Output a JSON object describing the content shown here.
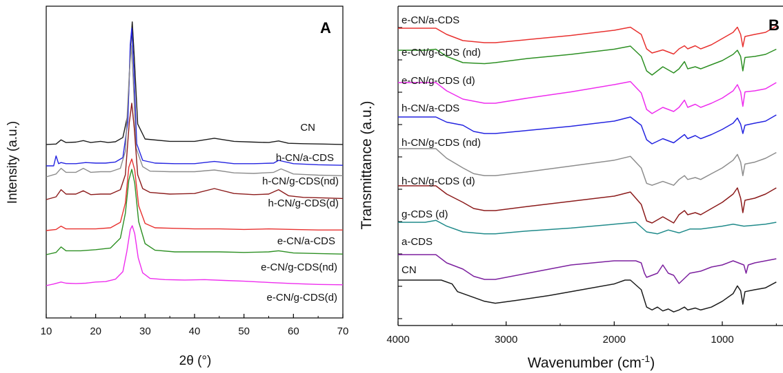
{
  "chart_data": [
    {
      "type": "line",
      "panel": "A",
      "xlabel": "2θ (°)",
      "ylabel": "Intensity (a.u.)",
      "xlim": [
        10,
        70
      ],
      "xticks": [
        10,
        20,
        30,
        40,
        50,
        60,
        70
      ],
      "grid": false,
      "series": [
        {
          "name": "CN",
          "color": "#1a1a1a",
          "x": [
            10,
            12,
            13,
            14,
            16,
            17.5,
            19,
            21,
            22.5,
            24,
            25.5,
            26.5,
            27,
            27.4,
            27.8,
            28.5,
            30,
            35,
            40,
            44,
            48,
            52,
            55,
            57,
            59,
            62,
            66,
            70
          ],
          "y": [
            0.02,
            0.03,
            0.14,
            0.07,
            0.08,
            0.12,
            0.07,
            0.1,
            0.07,
            0.09,
            0.2,
            0.8,
            2.4,
            3.2,
            2.3,
            0.55,
            0.16,
            0.1,
            0.1,
            0.18,
            0.1,
            0.08,
            0.07,
            0.11,
            0.05,
            0.04,
            0.03,
            0.02
          ]
        },
        {
          "name": "h-CN/a-CDS",
          "color": "#2323e0",
          "x": [
            10,
            11.5,
            12,
            12.5,
            13,
            14,
            16,
            18,
            20,
            22,
            24,
            25.5,
            26.5,
            27,
            27.3,
            27.7,
            28.3,
            29.5,
            32,
            36,
            40,
            44,
            48,
            52,
            56,
            57,
            60,
            65,
            70
          ],
          "y": [
            0.0,
            0.0,
            0.18,
            0.04,
            0.06,
            0.04,
            0.04,
            0.06,
            0.05,
            0.05,
            0.07,
            0.15,
            0.8,
            2.2,
            2.5,
            1.8,
            0.4,
            0.1,
            0.05,
            0.04,
            0.04,
            0.08,
            0.04,
            0.04,
            0.05,
            0.1,
            0.04,
            0.02,
            0.01
          ]
        },
        {
          "name": "h-CN/g-CDS(nd)",
          "color": "#8c8c8c",
          "x": [
            10,
            12,
            13,
            14,
            16,
            17.5,
            19,
            21,
            23,
            25,
            26,
            26.8,
            27.2,
            27.6,
            28.2,
            29.5,
            31,
            35,
            40,
            44,
            48,
            52,
            56,
            57.5,
            60,
            65,
            70
          ],
          "y": [
            0.0,
            0.05,
            0.15,
            0.08,
            0.08,
            0.15,
            0.08,
            0.09,
            0.09,
            0.15,
            0.45,
            1.8,
            2.3,
            1.7,
            0.5,
            0.18,
            0.1,
            0.09,
            0.09,
            0.12,
            0.07,
            0.06,
            0.08,
            0.14,
            0.05,
            0.03,
            0.02
          ]
        },
        {
          "name": "h-CN/g-CDS(d)",
          "color": "#8b1a1a",
          "x": [
            10,
            12,
            13,
            14,
            16,
            17.5,
            19,
            21,
            23,
            25,
            26,
            26.8,
            27.3,
            27.8,
            28.5,
            29.5,
            31,
            35,
            40,
            44,
            48,
            52,
            55,
            57,
            59,
            62,
            66,
            70
          ],
          "y": [
            0.0,
            0.05,
            0.18,
            0.1,
            0.1,
            0.16,
            0.09,
            0.1,
            0.1,
            0.18,
            0.45,
            1.4,
            1.75,
            1.3,
            0.45,
            0.2,
            0.13,
            0.1,
            0.11,
            0.2,
            0.11,
            0.09,
            0.1,
            0.18,
            0.07,
            0.04,
            0.03,
            0.02
          ]
        },
        {
          "name": "e-CN/a-CDS",
          "color": "#e8302e",
          "x": [
            10,
            12,
            13,
            14,
            17,
            20,
            23,
            25,
            26,
            26.7,
            27.3,
            27.9,
            28.7,
            30,
            32,
            36,
            40,
            45,
            50,
            55,
            60,
            65,
            70
          ],
          "y": [
            0.0,
            0.02,
            0.08,
            0.03,
            0.03,
            0.03,
            0.05,
            0.15,
            0.5,
            1.15,
            1.3,
            1.1,
            0.45,
            0.13,
            0.05,
            0.04,
            0.03,
            0.03,
            0.02,
            0.03,
            0.02,
            0.01,
            0.01
          ]
        },
        {
          "name": "e-CN/g-CDS(nd)",
          "color": "#2c8f22",
          "x": [
            10,
            12,
            13,
            14,
            17,
            20,
            23,
            25,
            26,
            26.7,
            27.3,
            27.9,
            28.7,
            30,
            32,
            36,
            40,
            45,
            50,
            55,
            57,
            60,
            65,
            70
          ],
          "y": [
            0.0,
            0.04,
            0.14,
            0.07,
            0.07,
            0.09,
            0.12,
            0.3,
            0.75,
            1.35,
            1.55,
            1.3,
            0.6,
            0.2,
            0.08,
            0.05,
            0.05,
            0.05,
            0.04,
            0.05,
            0.07,
            0.03,
            0.02,
            0.01
          ]
        },
        {
          "name": "e-CN/g-CDS(d)",
          "color": "#ee2cee",
          "x": [
            10,
            11.5,
            13,
            14,
            16,
            18,
            20,
            22,
            24,
            25.5,
            26.3,
            27,
            27.4,
            27.9,
            28.6,
            29.5,
            31,
            34,
            38,
            42,
            46,
            50,
            55,
            60,
            65,
            70
          ],
          "y": [
            0.0,
            0.04,
            0.09,
            0.06,
            0.05,
            0.06,
            0.09,
            0.1,
            0.16,
            0.35,
            0.85,
            1.4,
            1.5,
            1.3,
            0.7,
            0.32,
            0.18,
            0.15,
            0.14,
            0.15,
            0.13,
            0.11,
            0.08,
            0.05,
            0.03,
            0.02
          ]
        }
      ]
    },
    {
      "type": "line",
      "panel": "B",
      "xlabel": "Wavenumber (cm",
      "xlabel_sup": "-1",
      "xlabel_tail": ")",
      "ylabel": "Transmittance (a.u.)",
      "xlim": [
        4000,
        500
      ],
      "xticks": [
        4000,
        3000,
        2000,
        1000
      ],
      "grid": false,
      "series": [
        {
          "name": "e-CN/a-CDS",
          "color": "#e8302e",
          "x": [
            4000,
            3750,
            3650,
            3550,
            3400,
            3200,
            3100,
            2800,
            2400,
            2000,
            1850,
            1750,
            1700,
            1650,
            1550,
            1450,
            1400,
            1350,
            1320,
            1250,
            1200,
            1100,
            1000,
            900,
            860,
            830,
            810,
            790,
            700,
            600,
            500
          ],
          "y": [
            0.0,
            0.0,
            0.0,
            -0.3,
            -0.6,
            -0.7,
            -0.7,
            -0.55,
            -0.35,
            -0.1,
            0.05,
            -0.3,
            -1.0,
            -1.2,
            -1.05,
            -1.25,
            -1.0,
            -0.85,
            -1.0,
            -0.85,
            -1.0,
            -0.8,
            -0.5,
            -0.2,
            0.05,
            -0.3,
            -0.9,
            -0.4,
            -0.3,
            -0.2,
            0.1
          ]
        },
        {
          "name": "e-CN/g-CDS (nd)",
          "color": "#2c8f22",
          "x": [
            4000,
            3750,
            3650,
            3550,
            3400,
            3200,
            3100,
            2800,
            2400,
            2000,
            1850,
            1750,
            1700,
            1650,
            1550,
            1450,
            1400,
            1350,
            1320,
            1250,
            1200,
            1100,
            1000,
            900,
            860,
            830,
            810,
            790,
            700,
            600,
            500
          ],
          "y": [
            0.0,
            0.0,
            0.05,
            -0.3,
            -0.6,
            -0.65,
            -0.6,
            -0.4,
            -0.2,
            0.05,
            0.2,
            -0.3,
            -1.0,
            -1.2,
            -0.8,
            -1.1,
            -0.9,
            -0.55,
            -0.9,
            -0.8,
            -0.9,
            -0.7,
            -0.5,
            -0.2,
            0.0,
            -0.3,
            -1.0,
            -0.35,
            -0.3,
            -0.2,
            0.05
          ]
        },
        {
          "name": "e-CN/g-CDS (d)",
          "color": "#ee2cee",
          "x": [
            4000,
            3750,
            3650,
            3550,
            3400,
            3200,
            3100,
            2800,
            2400,
            2000,
            1850,
            1750,
            1700,
            1650,
            1550,
            1450,
            1400,
            1350,
            1320,
            1250,
            1200,
            1100,
            1000,
            900,
            860,
            830,
            810,
            790,
            700,
            600,
            500
          ],
          "y": [
            0.0,
            0.0,
            0.0,
            -0.4,
            -0.8,
            -1.0,
            -1.0,
            -0.75,
            -0.45,
            -0.1,
            0.05,
            -0.5,
            -1.3,
            -1.5,
            -1.2,
            -1.4,
            -1.2,
            -0.85,
            -1.2,
            -1.05,
            -1.2,
            -1.0,
            -0.75,
            -0.4,
            -0.1,
            -0.45,
            -1.15,
            -0.45,
            -0.4,
            -0.3,
            0.0
          ]
        },
        {
          "name": "h-CN/a-CDS",
          "color": "#2323e0",
          "x": [
            4000,
            3750,
            3650,
            3550,
            3400,
            3300,
            3200,
            3100,
            2800,
            2400,
            2000,
            1850,
            1750,
            1700,
            1650,
            1550,
            1450,
            1400,
            1350,
            1320,
            1250,
            1200,
            1100,
            1000,
            900,
            860,
            830,
            810,
            790,
            700,
            600,
            500
          ],
          "y": [
            0.0,
            0.0,
            0.0,
            -0.25,
            -0.4,
            -0.7,
            -0.8,
            -0.8,
            -0.65,
            -0.45,
            -0.2,
            0.0,
            -0.4,
            -1.1,
            -1.3,
            -1.05,
            -1.25,
            -1.05,
            -0.85,
            -1.05,
            -0.9,
            -1.05,
            -0.85,
            -0.6,
            -0.3,
            -0.05,
            -0.35,
            -0.8,
            -0.4,
            -0.3,
            -0.2,
            0.1
          ]
        },
        {
          "name": "h-CN/g-CDS (nd)",
          "color": "#8c8c8c",
          "x": [
            4000,
            3750,
            3650,
            3550,
            3400,
            3300,
            3200,
            3100,
            2800,
            2400,
            2000,
            1850,
            1750,
            1700,
            1650,
            1550,
            1450,
            1400,
            1350,
            1320,
            1250,
            1200,
            1100,
            1000,
            900,
            860,
            830,
            810,
            790,
            700,
            600,
            500
          ],
          "y": [
            0.0,
            0.0,
            0.0,
            -0.5,
            -1.0,
            -1.3,
            -1.4,
            -1.4,
            -1.2,
            -0.9,
            -0.6,
            -0.4,
            -1.0,
            -1.8,
            -1.9,
            -1.7,
            -1.9,
            -1.6,
            -1.4,
            -1.6,
            -1.5,
            -1.6,
            -1.3,
            -1.0,
            -0.6,
            -0.3,
            -0.7,
            -1.4,
            -0.8,
            -0.7,
            -0.5,
            -0.2
          ]
        },
        {
          "name": "h-CN/g-CDS (d)",
          "color": "#8b1a1a",
          "x": [
            4000,
            3750,
            3650,
            3550,
            3400,
            3300,
            3200,
            3100,
            2800,
            2400,
            2000,
            1850,
            1750,
            1700,
            1650,
            1550,
            1450,
            1400,
            1350,
            1320,
            1250,
            1200,
            1100,
            1000,
            900,
            860,
            830,
            810,
            790,
            700,
            600,
            500
          ],
          "y": [
            0.0,
            0.0,
            0.0,
            -0.4,
            -0.8,
            -1.1,
            -1.2,
            -1.2,
            -1.0,
            -0.75,
            -0.5,
            -0.3,
            -0.9,
            -1.7,
            -1.8,
            -1.5,
            -1.8,
            -1.4,
            -1.2,
            -1.4,
            -1.3,
            -1.4,
            -1.1,
            -0.8,
            -0.4,
            -0.1,
            -0.6,
            -1.3,
            -0.7,
            -0.6,
            -0.4,
            -0.1
          ]
        },
        {
          "name": "g-CDS (d)",
          "color": "#1f8a8a",
          "x": [
            4000,
            3750,
            3650,
            3550,
            3400,
            3200,
            3100,
            2800,
            2400,
            2000,
            1800,
            1700,
            1600,
            1500,
            1400,
            1300,
            1200,
            1000,
            900,
            800,
            700,
            600,
            500
          ],
          "y": [
            0.0,
            0.0,
            0.1,
            -0.2,
            -0.5,
            -0.6,
            -0.6,
            -0.45,
            -0.3,
            -0.1,
            0.0,
            -0.5,
            -0.6,
            -0.4,
            -0.55,
            -0.35,
            -0.35,
            -0.2,
            -0.1,
            -0.2,
            -0.15,
            -0.1,
            0.0
          ]
        },
        {
          "name": "a-CDS",
          "color": "#7b1f9e",
          "x": [
            4000,
            3750,
            3650,
            3550,
            3400,
            3300,
            3200,
            3100,
            2800,
            2400,
            2000,
            1800,
            1750,
            1720,
            1700,
            1600,
            1550,
            1500,
            1450,
            1400,
            1300,
            1200,
            1100,
            1000,
            900,
            850,
            800,
            780,
            760,
            700,
            600,
            500
          ],
          "y": [
            0.0,
            0.0,
            0.0,
            -0.4,
            -0.7,
            -1.05,
            -1.2,
            -1.2,
            -0.9,
            -0.5,
            -0.3,
            -0.3,
            -0.4,
            -0.9,
            -1.1,
            -0.9,
            -0.5,
            -0.9,
            -1.0,
            -1.4,
            -0.9,
            -0.8,
            -0.6,
            -0.5,
            -0.3,
            -0.4,
            -0.5,
            -0.9,
            -0.5,
            -0.4,
            -0.3,
            -0.2
          ]
        },
        {
          "name": "CN",
          "color": "#1a1a1a",
          "x": [
            4000,
            3800,
            3600,
            3500,
            3450,
            3400,
            3300,
            3200,
            3100,
            2900,
            2600,
            2300,
            2000,
            1900,
            1850,
            1750,
            1700,
            1650,
            1600,
            1550,
            1500,
            1450,
            1400,
            1350,
            1320,
            1250,
            1200,
            1100,
            1000,
            900,
            860,
            830,
            810,
            790,
            700,
            600,
            500
          ],
          "y": [
            0.0,
            0.0,
            0.0,
            -0.2,
            -0.6,
            -0.7,
            -0.9,
            -1.1,
            -1.2,
            -1.05,
            -0.8,
            -0.5,
            -0.2,
            0.0,
            0.0,
            -0.5,
            -1.4,
            -1.55,
            -1.4,
            -1.6,
            -1.5,
            -1.65,
            -1.55,
            -1.4,
            -1.55,
            -1.45,
            -1.55,
            -1.4,
            -1.1,
            -0.7,
            -0.3,
            -0.55,
            -1.25,
            -0.6,
            -0.5,
            -0.4,
            -0.1
          ]
        }
      ]
    }
  ]
}
